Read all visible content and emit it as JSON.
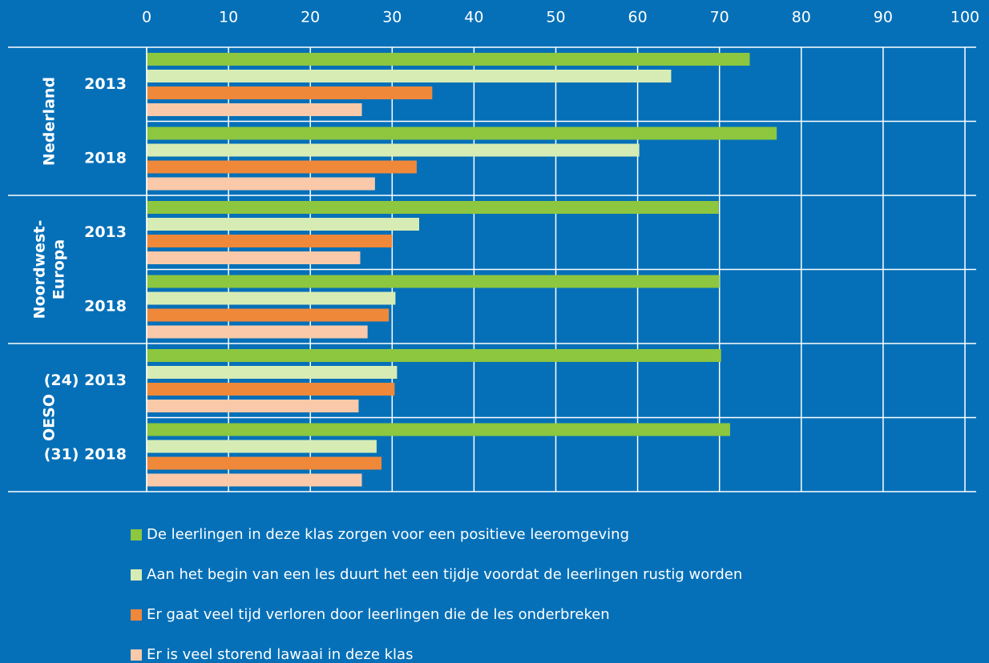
{
  "chart_data": {
    "type": "hbar",
    "groups": [
      {
        "label": [
          "Nederland"
        ],
        "categories": [
          "2013",
          "2018"
        ]
      },
      {
        "label": [
          "Noordwest-",
          "Europa"
        ],
        "categories": [
          "2013",
          "2018"
        ]
      },
      {
        "label": [
          "OESO"
        ],
        "categories": [
          "(24) 2013",
          "(31) 2018"
        ]
      }
    ],
    "series": [
      {
        "name": "De leerlingen in deze klas zorgen voor een positieve leeromgeving",
        "color": "#8dc63f",
        "values": [
          73.7,
          77.0,
          69.9,
          70.0,
          70.2,
          71.3
        ]
      },
      {
        "name": "Aan het begin van een les duurt het een tijdje voordat de leerlingen rustig worden",
        "color": "#d7ecb5",
        "values": [
          64.1,
          60.2,
          33.3,
          30.4,
          30.6,
          28.1
        ]
      },
      {
        "name": "Er gaat veel tijd verloren door leerlingen die de les onderbreken",
        "color": "#f0883a",
        "values": [
          34.9,
          33.0,
          30.0,
          29.6,
          30.3,
          28.7
        ]
      },
      {
        "name": "Er is veel storend lawaai in deze klas",
        "color": "#f9c9a9",
        "values": [
          26.3,
          27.9,
          26.1,
          27.0,
          25.9,
          26.3
        ]
      }
    ],
    "xlim": [
      0,
      100
    ],
    "xticks": [
      0,
      10,
      20,
      30,
      40,
      50,
      60,
      70,
      80,
      90,
      100
    ],
    "grid": true
  }
}
